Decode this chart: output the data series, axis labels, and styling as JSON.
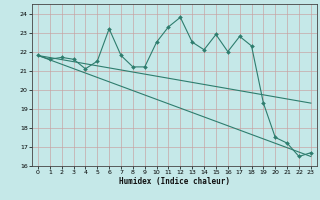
{
  "xlabel": "Humidex (Indice chaleur)",
  "background_color": "#c5e8e8",
  "grid_color": "#b0cccc",
  "line_color": "#2e7d6e",
  "xlim": [
    -0.5,
    23.5
  ],
  "ylim": [
    16,
    24.5
  ],
  "yticks": [
    16,
    17,
    18,
    19,
    20,
    21,
    22,
    23,
    24
  ],
  "xticks": [
    0,
    1,
    2,
    3,
    4,
    5,
    6,
    7,
    8,
    9,
    10,
    11,
    12,
    13,
    14,
    15,
    16,
    17,
    18,
    19,
    20,
    21,
    22,
    23
  ],
  "series1_x": [
    0,
    1,
    2,
    3,
    4,
    5,
    6,
    7,
    8,
    9,
    10,
    11,
    12,
    13,
    14,
    15,
    16,
    17,
    18,
    19,
    20,
    21,
    22,
    23
  ],
  "series1_y": [
    21.8,
    21.6,
    21.7,
    21.6,
    21.1,
    21.5,
    23.2,
    21.8,
    21.2,
    21.2,
    22.5,
    23.3,
    23.8,
    22.5,
    22.1,
    22.9,
    22.0,
    22.8,
    22.3,
    19.3,
    17.5,
    17.2,
    16.5,
    16.7
  ],
  "trend1_x": [
    0,
    23
  ],
  "trend1_y": [
    21.8,
    16.5
  ],
  "trend2_x": [
    0,
    23
  ],
  "trend2_y": [
    21.8,
    19.3
  ]
}
